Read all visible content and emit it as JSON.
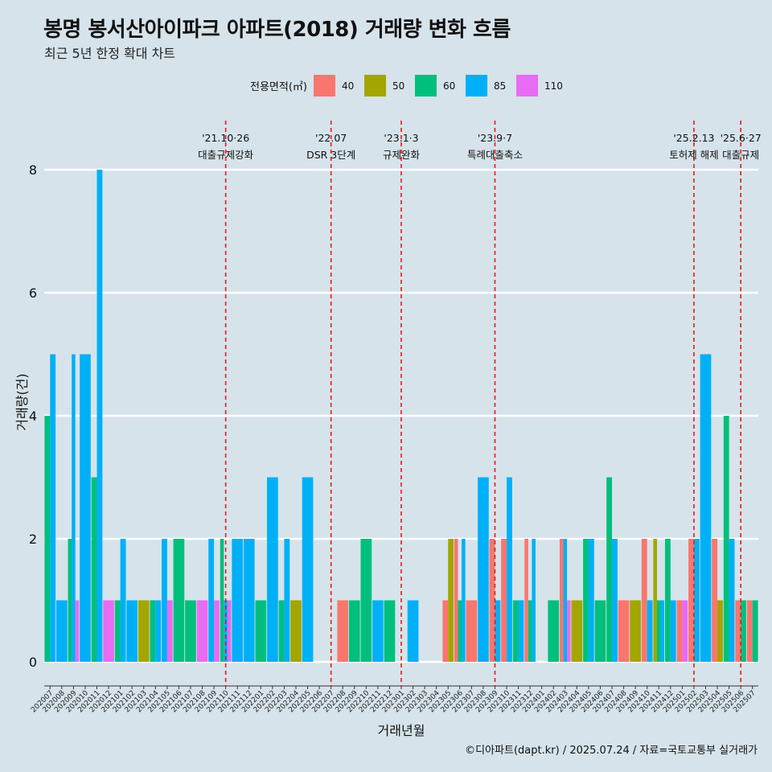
{
  "title": "봉명 봉서산아이파크 아파트(2018) 거래량 변화 흐름",
  "subtitle": "최근 5년 한정 확대 차트",
  "caption": "©디아파트(dapt.kr) / 2025.07.24 / 자료=국토교통부 실거래가",
  "colors": {
    "40": "#f8766d",
    "50": "#a3a500",
    "60": "#00bf7d",
    "85": "#00b0f6",
    "110": "#e76bf3"
  },
  "chart_data": {
    "type": "bar",
    "title": "봉명 봉서산아이파크 아파트(2018) 거래량 변화 흐름",
    "subtitle": "최근 5년 한정 확대 차트",
    "xlabel": "거래년월",
    "ylabel": "거래량(건)",
    "ylim": [
      0,
      8
    ],
    "yticks": [
      0,
      2,
      4,
      6,
      8
    ],
    "legend": {
      "title": "전용면적(㎡)",
      "entries": [
        "40",
        "50",
        "60",
        "85",
        "110"
      ],
      "position": "top"
    },
    "categories": [
      "202007",
      "202008",
      "202009",
      "202010",
      "202011",
      "202012",
      "202101",
      "202102",
      "202103",
      "202104",
      "202105",
      "202106",
      "202107",
      "202108",
      "202109",
      "202110",
      "202111",
      "202112",
      "202201",
      "202202",
      "202203",
      "202204",
      "202205",
      "202206",
      "202207",
      "202208",
      "202209",
      "202210",
      "202211",
      "202212",
      "202301",
      "202302",
      "202303",
      "202304",
      "202305",
      "202306",
      "202307",
      "202308",
      "202309",
      "202310",
      "202311",
      "202312",
      "202401",
      "202402",
      "202403",
      "202404",
      "202405",
      "202406",
      "202407",
      "202408",
      "202409",
      "202410",
      "202411",
      "202412",
      "202501",
      "202502",
      "202503",
      "202504",
      "202505",
      "202506",
      "202507"
    ],
    "series": [
      {
        "name": "40",
        "values": [
          0,
          0,
          0,
          0,
          0,
          0,
          0,
          0,
          0,
          0,
          0,
          0,
          0,
          0,
          0,
          0,
          0,
          0,
          0,
          0,
          0,
          0,
          0,
          0,
          0,
          1,
          0,
          0,
          0,
          0,
          0,
          0,
          0,
          0,
          1,
          2,
          1,
          0,
          2,
          2,
          0,
          2,
          0,
          0,
          2,
          0,
          0,
          0,
          0,
          1,
          0,
          2,
          0,
          0,
          1,
          2,
          0,
          2,
          0,
          1,
          1
        ]
      },
      {
        "name": "50",
        "values": [
          0,
          0,
          0,
          0,
          0,
          0,
          0,
          0,
          1,
          0,
          0,
          0,
          0,
          0,
          0,
          0,
          0,
          0,
          0,
          0,
          0,
          1,
          0,
          0,
          0,
          0,
          0,
          0,
          0,
          0,
          0,
          0,
          0,
          0,
          2,
          0,
          0,
          0,
          0,
          0,
          0,
          0,
          0,
          0,
          0,
          1,
          0,
          0,
          0,
          0,
          1,
          0,
          2,
          0,
          0,
          0,
          0,
          1,
          0,
          0,
          0
        ]
      },
      {
        "name": "60",
        "values": [
          4,
          0,
          2,
          0,
          3,
          0,
          1,
          0,
          0,
          1,
          0,
          2,
          1,
          0,
          0,
          2,
          0,
          0,
          1,
          0,
          1,
          0,
          0,
          0,
          0,
          0,
          1,
          2,
          0,
          1,
          0,
          0,
          0,
          0,
          0,
          1,
          0,
          0,
          0,
          0,
          1,
          1,
          0,
          1,
          0,
          0,
          2,
          1,
          3,
          0,
          0,
          0,
          1,
          2,
          0,
          0,
          0,
          0,
          4,
          1,
          1
        ]
      },
      {
        "name": "85",
        "values": [
          5,
          1,
          5,
          5,
          8,
          0,
          2,
          1,
          0,
          1,
          2,
          0,
          0,
          0,
          2,
          1,
          2,
          2,
          0,
          3,
          2,
          0,
          3,
          0,
          0,
          0,
          0,
          0,
          1,
          0,
          0,
          1,
          0,
          0,
          0,
          2,
          0,
          3,
          1,
          3,
          1,
          2,
          0,
          0,
          2,
          0,
          2,
          0,
          2,
          0,
          0,
          1,
          1,
          1,
          0,
          2,
          5,
          0,
          2,
          0,
          0
        ]
      },
      {
        "name": "110",
        "values": [
          0,
          0,
          1,
          0,
          0,
          1,
          0,
          0,
          0,
          0,
          1,
          0,
          0,
          1,
          1,
          1,
          0,
          0,
          0,
          0,
          0,
          0,
          0,
          0,
          0,
          0,
          0,
          0,
          0,
          0,
          0,
          0,
          0,
          0,
          0,
          0,
          0,
          0,
          0,
          0,
          0,
          0,
          0,
          0,
          1,
          0,
          0,
          0,
          0,
          0,
          0,
          0,
          0,
          0,
          1,
          0,
          0,
          0,
          0,
          0,
          0
        ]
      }
    ],
    "events": [
      {
        "date": "'21.10·26",
        "label": "대출규제강화",
        "at": "202110"
      },
      {
        "date": "'22.07",
        "label": "DSR 3단계",
        "at": "202207"
      },
      {
        "date": "'23.1·3",
        "label": "규제완화",
        "at": "202301"
      },
      {
        "date": "'23.9·7",
        "label": "특례대출축소",
        "at": "202309"
      },
      {
        "date": "'25.2.13",
        "label": "토허제 해제",
        "at": "202502"
      },
      {
        "date": "'25.6·27",
        "label": "대출규제",
        "at": "202506"
      }
    ]
  }
}
